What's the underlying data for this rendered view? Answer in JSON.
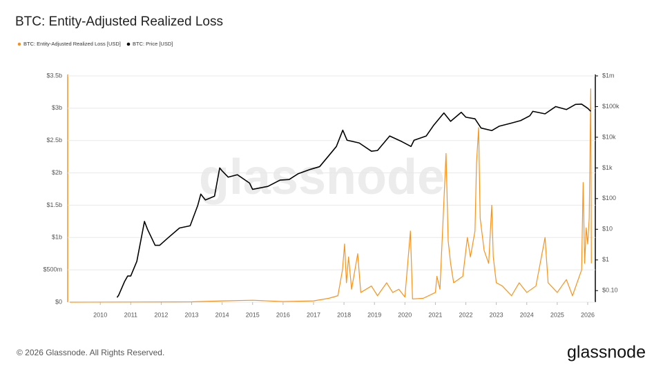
{
  "chart_data": {
    "type": "line",
    "title": "BTC: Entity-Adjusted Realized Loss",
    "watermark": "glassnode",
    "footer": "© 2026 Glassnode. All Rights Reserved.",
    "brand": "glassnode",
    "grid": true,
    "xlim": [
      2008.93,
      2026.25
    ],
    "xticks": [
      2010,
      2011,
      2012,
      2013,
      2014,
      2015,
      2016,
      2017,
      2018,
      2019,
      2020,
      2021,
      2022,
      2023,
      2024,
      2025,
      2026
    ],
    "ylim": [
      0,
      3500000000
    ],
    "yticks": [
      {
        "value": 0,
        "label": "$0"
      },
      {
        "value": 500000000,
        "label": "$500m"
      },
      {
        "value": 1000000000,
        "label": "$1b"
      },
      {
        "value": 1500000000,
        "label": "$1.5b"
      },
      {
        "value": 2000000000,
        "label": "$2b"
      },
      {
        "value": 2500000000,
        "label": "$2.5b"
      },
      {
        "value": 3000000000,
        "label": "$3b"
      },
      {
        "value": 3500000000,
        "label": "$3.5b"
      }
    ],
    "y2log": true,
    "y2lim": [
      0.042,
      1000000
    ],
    "y2ticks": [
      {
        "value": 0.1,
        "label": "$0.10"
      },
      {
        "value": 1,
        "label": "$1"
      },
      {
        "value": 10,
        "label": "$10"
      },
      {
        "value": 100,
        "label": "$100"
      },
      {
        "value": 1000,
        "label": "$1k"
      },
      {
        "value": 10000,
        "label": "$10k"
      },
      {
        "value": 100000,
        "label": "$100k"
      },
      {
        "value": 1000000,
        "label": "$1m"
      }
    ],
    "series": [
      {
        "name": "BTC: Entity-Adjusted Realized Loss [USD]",
        "color": "#f7931a",
        "axis": "y",
        "x": [
          2009.0,
          2013.0,
          2014.0,
          2015.0,
          2016.0,
          2017.0,
          2017.5,
          2017.8,
          2017.95,
          2018.02,
          2018.08,
          2018.15,
          2018.25,
          2018.45,
          2018.55,
          2018.9,
          2019.1,
          2019.4,
          2019.6,
          2019.8,
          2020.0,
          2020.18,
          2020.25,
          2020.6,
          2021.0,
          2021.05,
          2021.15,
          2021.35,
          2021.42,
          2021.5,
          2021.6,
          2021.9,
          2022.05,
          2022.15,
          2022.3,
          2022.35,
          2022.42,
          2022.47,
          2022.6,
          2022.75,
          2022.85,
          2022.9,
          2023.0,
          2023.2,
          2023.5,
          2023.75,
          2024.0,
          2024.3,
          2024.6,
          2024.7,
          2025.0,
          2025.3,
          2025.5,
          2025.8,
          2025.85,
          2025.9,
          2025.95,
          2026.0,
          2026.05,
          2026.1,
          2026.12
        ],
        "values": [
          0,
          5000000,
          20000000,
          30000000,
          10000000,
          20000000,
          60000000,
          100000000,
          500000000,
          900000000,
          300000000,
          700000000,
          200000000,
          750000000,
          150000000,
          250000000,
          100000000,
          300000000,
          150000000,
          200000000,
          80000000,
          1100000000,
          50000000,
          60000000,
          150000000,
          400000000,
          200000000,
          2300000000,
          950000000,
          600000000,
          300000000,
          400000000,
          1000000000,
          700000000,
          1100000000,
          2150000000,
          2700000000,
          1300000000,
          800000000,
          600000000,
          1500000000,
          700000000,
          300000000,
          250000000,
          100000000,
          300000000,
          150000000,
          250000000,
          1000000000,
          300000000,
          150000000,
          350000000,
          100000000,
          500000000,
          1850000000,
          600000000,
          1150000000,
          900000000,
          1300000000,
          3300000000,
          600000000
        ]
      },
      {
        "name": "BTC: Price [USD]",
        "color": "#000000",
        "axis": "y2",
        "x": [
          2010.55,
          2010.6,
          2010.8,
          2010.9,
          2011.0,
          2011.2,
          2011.45,
          2011.55,
          2011.8,
          2011.95,
          2012.2,
          2012.6,
          2012.95,
          2013.2,
          2013.3,
          2013.45,
          2013.75,
          2013.92,
          2014.0,
          2014.2,
          2014.5,
          2014.9,
          2015.0,
          2015.5,
          2015.9,
          2016.2,
          2016.5,
          2016.9,
          2017.2,
          2017.5,
          2017.75,
          2017.96,
          2018.1,
          2018.5,
          2018.9,
          2019.1,
          2019.5,
          2019.9,
          2020.2,
          2020.3,
          2020.7,
          2020.95,
          2021.28,
          2021.5,
          2021.85,
          2022.0,
          2022.3,
          2022.5,
          2022.85,
          2023.1,
          2023.5,
          2023.8,
          2024.1,
          2024.2,
          2024.6,
          2024.95,
          2025.3,
          2025.6,
          2025.8,
          2026.0,
          2026.1
        ],
        "values": [
          0.06,
          0.07,
          0.2,
          0.3,
          0.3,
          0.9,
          18,
          10,
          3,
          3,
          5,
          11,
          13,
          60,
          140,
          90,
          120,
          1000,
          800,
          500,
          600,
          320,
          200,
          250,
          400,
          420,
          650,
          900,
          1100,
          2500,
          5000,
          17000,
          8000,
          6500,
          3500,
          3700,
          11000,
          7200,
          5000,
          8000,
          11000,
          25000,
          62000,
          33000,
          65000,
          45000,
          40000,
          20000,
          16500,
          23000,
          29000,
          35000,
          50000,
          70000,
          58000,
          100000,
          80000,
          118000,
          120000,
          88000,
          70000
        ]
      }
    ]
  }
}
